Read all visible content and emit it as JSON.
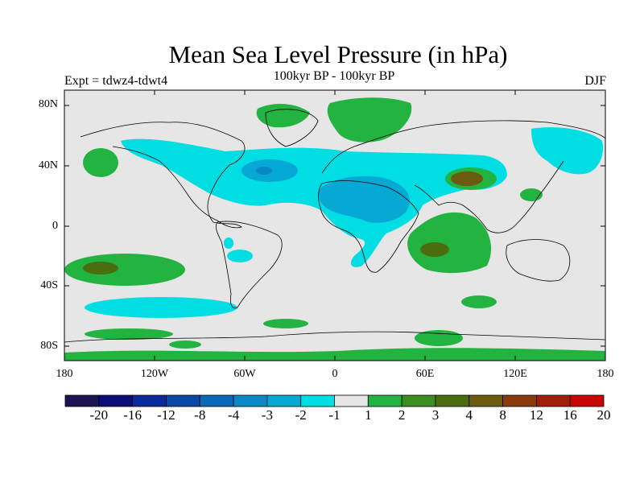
{
  "header": {
    "title": "Mean Sea Level Pressure (in hPa)",
    "experiment": "Expt = tdwz4-tdwt4",
    "period": "100kyr BP - 100kyr BP",
    "season": "DJF"
  },
  "axes": {
    "lat_ticks": [
      "80N",
      "40N",
      "0",
      "40S",
      "80S"
    ],
    "lon_ticks": [
      "180",
      "120W",
      "60W",
      "0",
      "60E",
      "120E",
      "180"
    ]
  },
  "colorbar": {
    "labels": [
      "-20",
      "-16",
      "-12",
      "-8",
      "-4",
      "-3",
      "-2",
      "-1",
      "1",
      "2",
      "3",
      "4",
      "8",
      "12",
      "16",
      "20"
    ],
    "colors": [
      "#1b1452",
      "#0c0c78",
      "#0a2a9c",
      "#0b48a8",
      "#0a68b8",
      "#0888c6",
      "#06a8d4",
      "#00dde3",
      "#e6e6e6",
      "#22b340",
      "#3b8d22",
      "#4a6d10",
      "#6b5a10",
      "#8a3a0c",
      "#a31e08",
      "#c80404"
    ]
  },
  "map": {
    "background": "#e6e6e6",
    "land_line": "#000000"
  }
}
